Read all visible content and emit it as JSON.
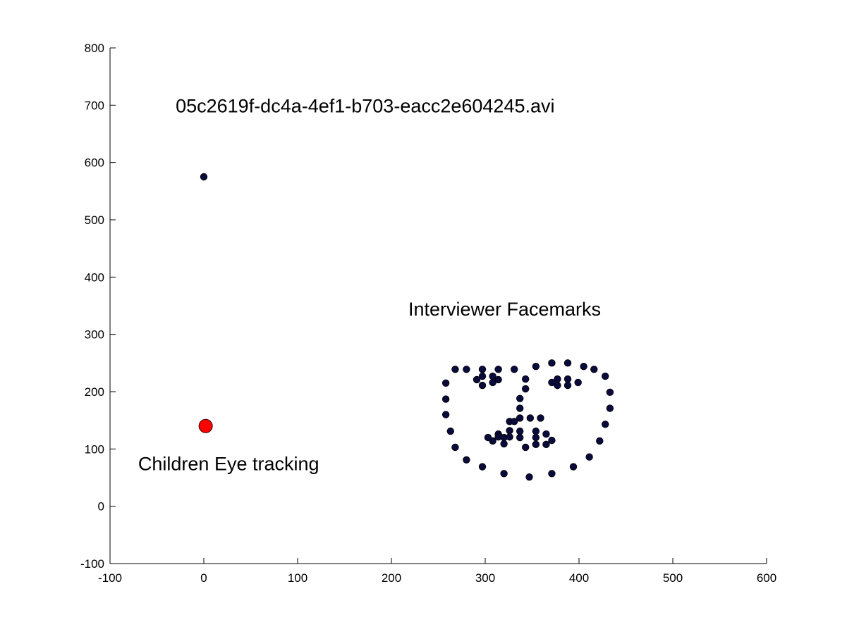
{
  "chart_data": {
    "type": "scatter",
    "xlim": [
      -100,
      600
    ],
    "ylim": [
      -100,
      800
    ],
    "x_ticks": [
      "-100",
      "0",
      "100",
      "200",
      "300",
      "400",
      "500",
      "600"
    ],
    "y_ticks": [
      "-100",
      "0",
      "100",
      "200",
      "300",
      "400",
      "500",
      "600",
      "700",
      "800"
    ],
    "grid": false,
    "annotations": [
      {
        "text": "05c2619f-dc4a-4ef1-b703-eacc2e604245.avi",
        "x": -30,
        "y": 700
      },
      {
        "text": "Interviewer Facemarks",
        "x": 218,
        "y": 345
      },
      {
        "text": "Children Eye tracking",
        "x": -70,
        "y": 75
      }
    ],
    "series": [
      {
        "color": "#0a0a3c",
        "marker": "dot",
        "points": [
          [
            0,
            575
          ],
          [
            258,
            215
          ],
          [
            258,
            187
          ],
          [
            258,
            160
          ],
          [
            263,
            131
          ],
          [
            268,
            103
          ],
          [
            280,
            81
          ],
          [
            297,
            69
          ],
          [
            320,
            57
          ],
          [
            347,
            51
          ],
          [
            371,
            57
          ],
          [
            394,
            69
          ],
          [
            411,
            86
          ],
          [
            422,
            114
          ],
          [
            428,
            143
          ],
          [
            433,
            171
          ],
          [
            433,
            199
          ],
          [
            428,
            227
          ],
          [
            268,
            239
          ],
          [
            280,
            239
          ],
          [
            297,
            239
          ],
          [
            314,
            239
          ],
          [
            331,
            239
          ],
          [
            354,
            244
          ],
          [
            371,
            250
          ],
          [
            388,
            250
          ],
          [
            405,
            244
          ],
          [
            416,
            239
          ],
          [
            297,
            227
          ],
          [
            291,
            221
          ],
          [
            297,
            211
          ],
          [
            308,
            216
          ],
          [
            314,
            221
          ],
          [
            308,
            227
          ],
          [
            371,
            216
          ],
          [
            377,
            222
          ],
          [
            388,
            222
          ],
          [
            399,
            216
          ],
          [
            388,
            211
          ],
          [
            377,
            211
          ],
          [
            343,
            222
          ],
          [
            343,
            205
          ],
          [
            337,
            188
          ],
          [
            337,
            171
          ],
          [
            326,
            148
          ],
          [
            331,
            148
          ],
          [
            337,
            154
          ],
          [
            348,
            154
          ],
          [
            359,
            154
          ],
          [
            303,
            120
          ],
          [
            314,
            126
          ],
          [
            326,
            132
          ],
          [
            337,
            131
          ],
          [
            354,
            131
          ],
          [
            365,
            126
          ],
          [
            371,
            115
          ],
          [
            365,
            108
          ],
          [
            354,
            108
          ],
          [
            343,
            103
          ],
          [
            320,
            109
          ],
          [
            308,
            114
          ],
          [
            314,
            121
          ],
          [
            320,
            120
          ],
          [
            326,
            121
          ],
          [
            337,
            120
          ],
          [
            354,
            120
          ]
        ]
      },
      {
        "color": "#ff0000",
        "marker": "large-circle",
        "points": [
          [
            2,
            140
          ]
        ]
      }
    ]
  }
}
